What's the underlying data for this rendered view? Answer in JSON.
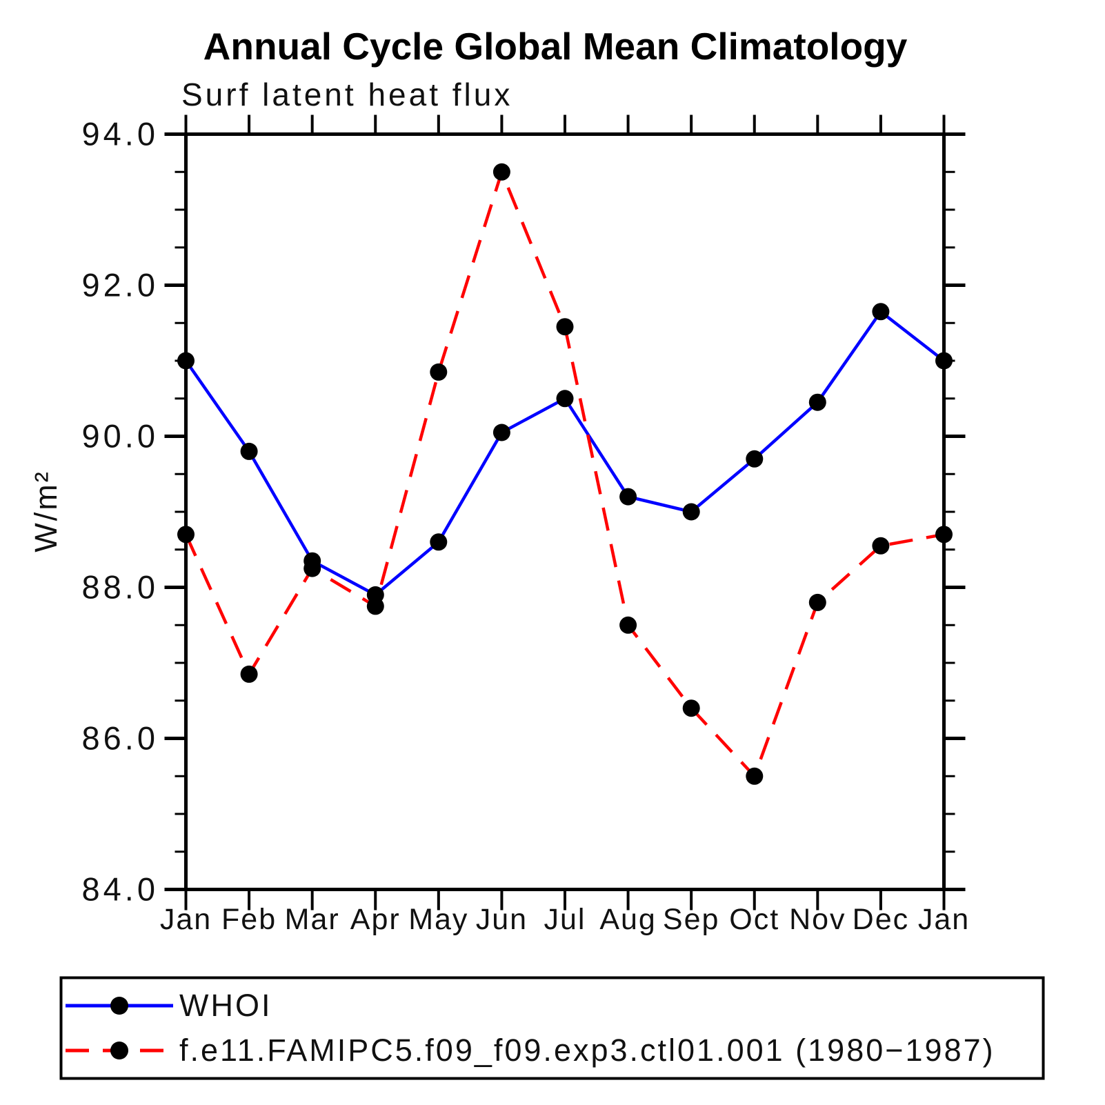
{
  "chart_data": {
    "type": "line",
    "title": "Annual Cycle Global Mean Climatology",
    "subtitle": "Surf latent heat flux",
    "ylabel": "W/m²",
    "xlabel": "",
    "categories": [
      "Jan",
      "Feb",
      "Mar",
      "Apr",
      "May",
      "Jun",
      "Jul",
      "Aug",
      "Sep",
      "Oct",
      "Nov",
      "Dec",
      "Jan"
    ],
    "ylim": [
      84.0,
      94.0
    ],
    "y_major_ticks": [
      94.0,
      92.0,
      90.0,
      88.0,
      86.0,
      84.0
    ],
    "y_tick_labels": [
      "94.0",
      "92.0",
      "90.0",
      "88.0",
      "86.0",
      "84.0"
    ],
    "y_minor_step": 0.5,
    "grid": "off",
    "legend_position": "bottom",
    "marker": "filled-circle",
    "marker_color": "#000000",
    "axis_color": "#000000",
    "series": [
      {
        "name": "WHOI",
        "color": "#0000ff",
        "line_style": "solid",
        "values": [
          91.0,
          89.8,
          88.35,
          87.9,
          88.6,
          90.05,
          90.5,
          89.2,
          89.0,
          89.7,
          90.45,
          91.65,
          91.0
        ]
      },
      {
        "name": "f.e11.FAMIPC5.f09_f09.exp3.ctl01.001 (1980−1987)",
        "color": "#ff0000",
        "line_style": "dashed",
        "values": [
          88.7,
          86.85,
          88.25,
          87.75,
          90.85,
          93.5,
          91.45,
          87.5,
          86.4,
          85.5,
          87.8,
          88.55,
          88.7
        ]
      }
    ]
  }
}
